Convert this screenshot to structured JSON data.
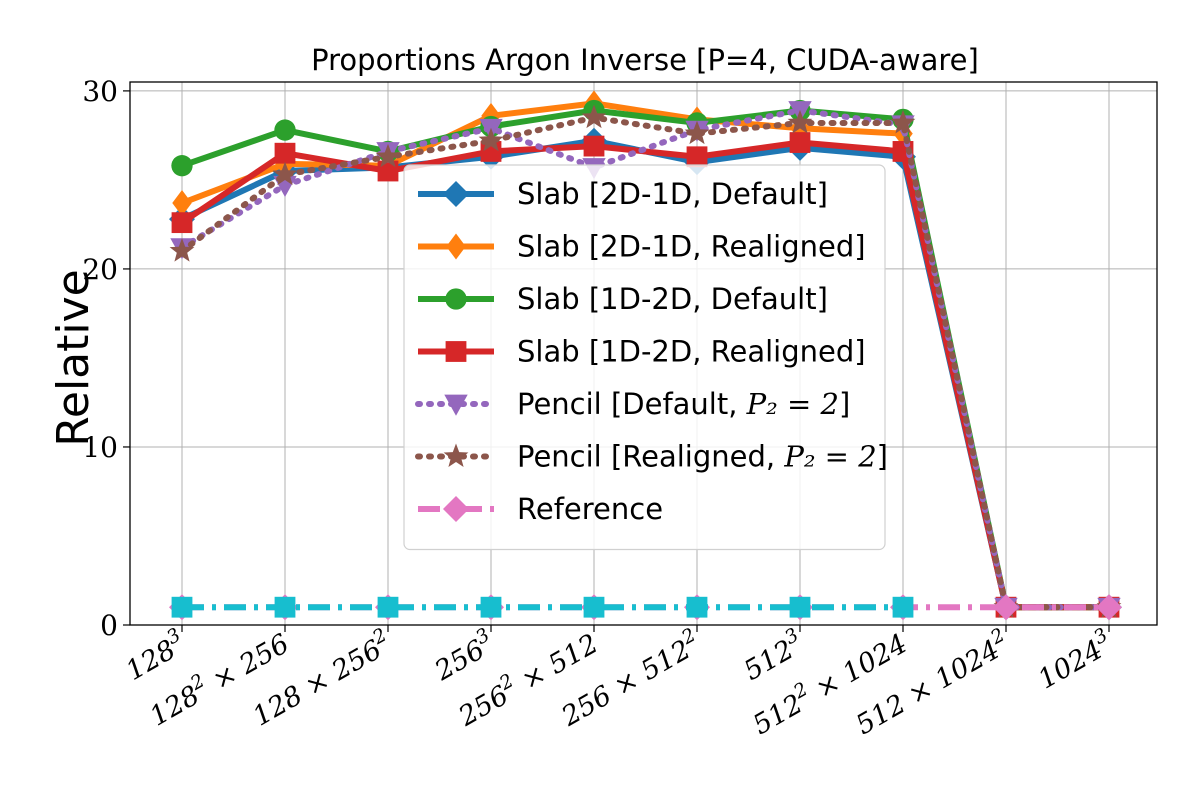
{
  "chart_data": {
    "type": "line",
    "title": "Proportions Argon Inverse [P=4, CUDA-aware]",
    "ylabel": "Relative",
    "xlabel": "",
    "ylim": [
      0,
      30.5
    ],
    "yticks": [
      0,
      10,
      20,
      30
    ],
    "grid": true,
    "legend_position": "center",
    "categories": [
      "128^3",
      "128^2 × 256",
      "128 × 256^2",
      "256^3",
      "256^2 × 512",
      "256 × 512^2",
      "512^3",
      "512^2 × 1024",
      "512 × 1024^2",
      "1024^3"
    ],
    "category_labels": [
      {
        "base": "128",
        "exp": "3",
        "rest": ""
      },
      {
        "base": "128",
        "exp": "2",
        "rest": " × 256"
      },
      {
        "base": "128 × 256",
        "exp": "2",
        "rest": ""
      },
      {
        "base": "256",
        "exp": "3",
        "rest": ""
      },
      {
        "base": "256",
        "exp": "2",
        "rest": " × 512"
      },
      {
        "base": "256 × 512",
        "exp": "2",
        "rest": ""
      },
      {
        "base": "512",
        "exp": "3",
        "rest": ""
      },
      {
        "base": "512",
        "exp": "2",
        "rest": " × 1024"
      },
      {
        "base": "512 × 1024",
        "exp": "2",
        "rest": ""
      },
      {
        "base": "1024",
        "exp": "3",
        "rest": ""
      }
    ],
    "series": [
      {
        "name": "Slab [2D-1D, Default]",
        "color": "#1f77b4",
        "dash": "solid",
        "marker": "diamond",
        "values": [
          22.8,
          25.5,
          25.7,
          26.3,
          27.2,
          26.0,
          26.8,
          26.3,
          1.0,
          1.0
        ]
      },
      {
        "name": "Slab [2D-1D, Realigned]",
        "color": "#ff7f0e",
        "dash": "solid",
        "marker": "thin-diamond",
        "values": [
          23.7,
          25.9,
          25.8,
          28.6,
          29.3,
          28.4,
          27.9,
          27.6,
          1.0,
          1.0
        ]
      },
      {
        "name": "Slab [1D-2D, Default]",
        "color": "#2ca02c",
        "dash": "solid",
        "marker": "circle",
        "values": [
          25.8,
          27.8,
          26.6,
          28.0,
          28.9,
          28.2,
          28.9,
          28.4,
          1.0,
          1.0
        ]
      },
      {
        "name": "Slab [1D-2D, Realigned]",
        "color": "#d62728",
        "dash": "solid",
        "marker": "square",
        "values": [
          22.6,
          26.5,
          25.5,
          26.6,
          26.9,
          26.3,
          27.1,
          26.6,
          1.0,
          1.0
        ]
      },
      {
        "name": "Pencil [Default, ",
        "math": "P₂ = 2",
        "suffix": "]",
        "color": "#9467bd",
        "dash": "dotted",
        "marker": "triangle-down",
        "values": [
          21.2,
          24.7,
          26.6,
          27.9,
          25.7,
          27.8,
          28.9,
          28.1,
          1.0,
          1.0
        ]
      },
      {
        "name": "Pencil [Realigned, ",
        "math": "P₂ = 2",
        "suffix": "]",
        "color": "#8c564b",
        "dash": "dotted",
        "marker": "star",
        "values": [
          21.0,
          25.3,
          26.3,
          27.2,
          28.5,
          27.6,
          28.2,
          28.2,
          1.0,
          1.0
        ]
      },
      {
        "name": "Reference",
        "color": "#e377c2",
        "dash": "dashdot",
        "marker": "diamond",
        "values": [
          1.0,
          1.0,
          1.0,
          1.0,
          1.0,
          1.0,
          1.0,
          1.0,
          1.0,
          1.0
        ]
      },
      {
        "color": "#17becf",
        "dash": "dashdot",
        "marker": "square",
        "values": [
          1.0,
          1.0,
          1.0,
          1.0,
          1.0,
          1.0,
          1.0,
          1.0,
          null,
          null
        ]
      }
    ]
  }
}
